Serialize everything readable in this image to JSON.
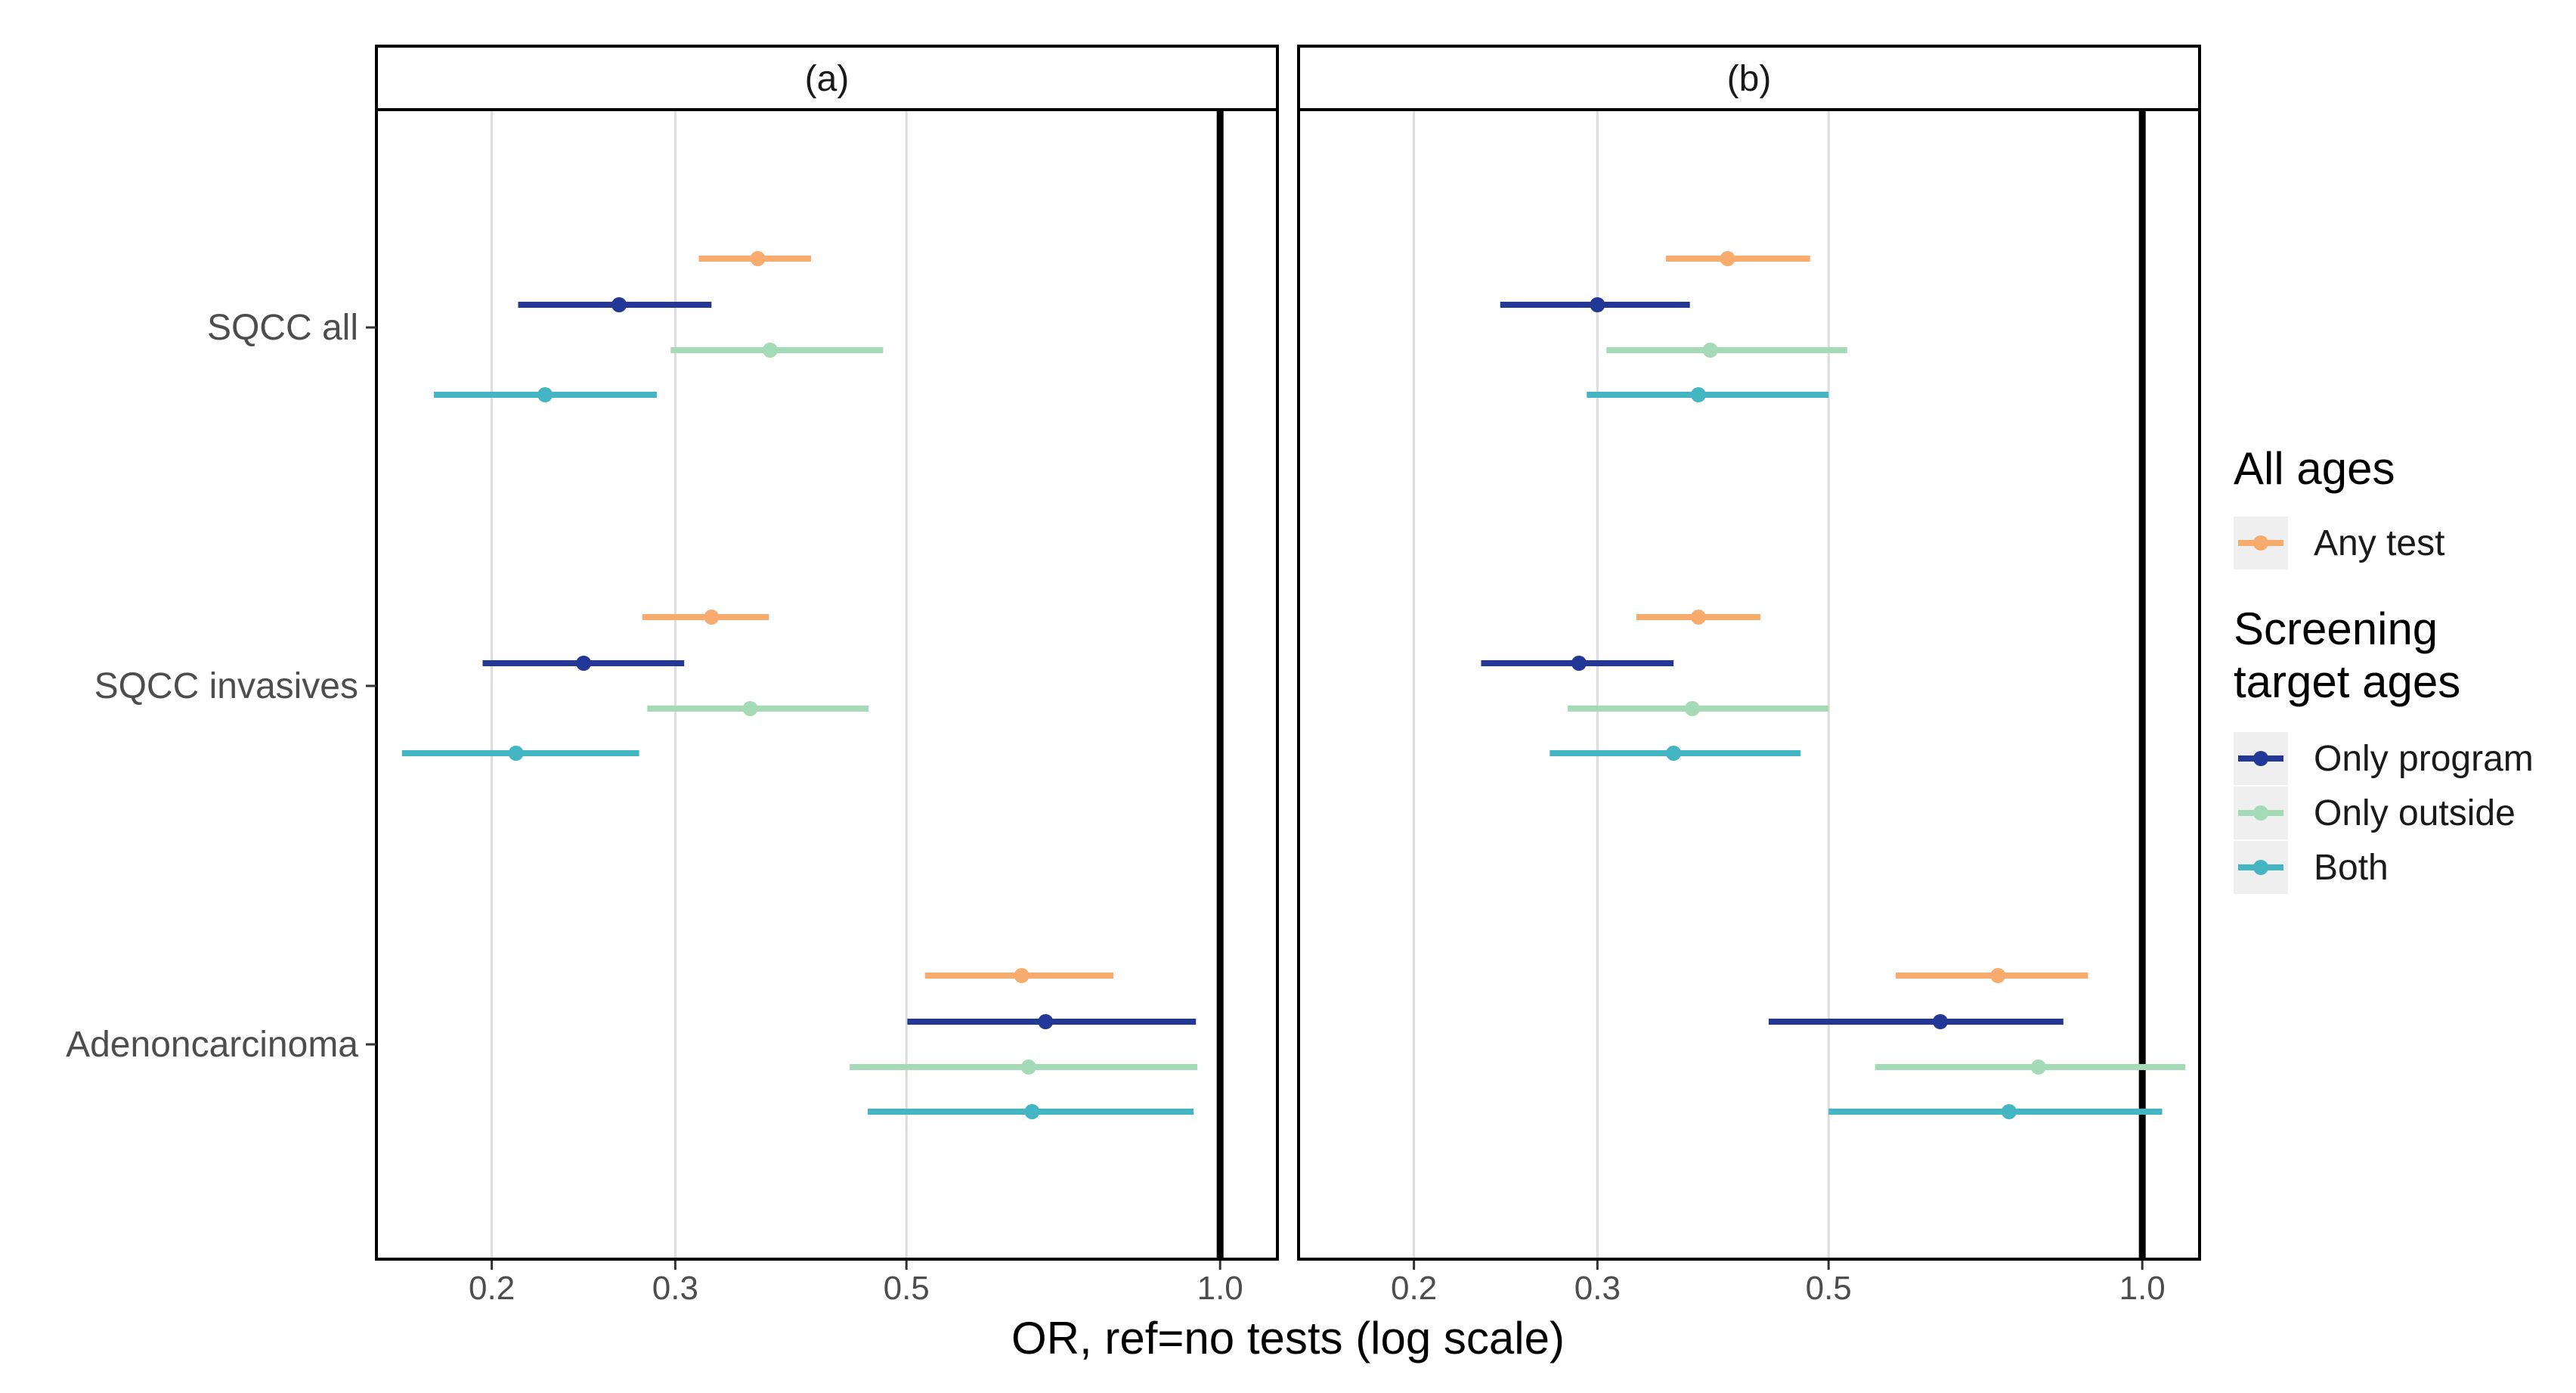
{
  "chart_data": {
    "type": "forest",
    "scale": "log",
    "xlim": [
      0.155,
      1.135
    ],
    "xticks": [
      0.2,
      0.3,
      0.5,
      1.0
    ],
    "xtick_labels": [
      "0.2",
      "0.3",
      "0.5",
      "1.0"
    ],
    "reference_line": 1.0,
    "xlabel": "OR, ref=no tests (log scale)",
    "categories": [
      "SQCC all",
      "SQCC invasives",
      "Adenoncarcinoma"
    ],
    "colors": {
      "any": "#F7AC6E",
      "program": "#233796",
      "outside": "#A4DBB6",
      "both": "#44B5C2"
    },
    "legend": {
      "title1": "All ages",
      "items1": [
        {
          "key": "any",
          "label": "Any test"
        }
      ],
      "title2_line1": "Screening",
      "title2_line2": "target ages",
      "items2": [
        {
          "key": "program",
          "label": "Only program"
        },
        {
          "key": "outside",
          "label": "Only outside"
        },
        {
          "key": "both",
          "label": "Both"
        }
      ]
    },
    "panels": [
      {
        "title": "(a)",
        "groups": [
          {
            "category": "SQCC all",
            "rows": [
              {
                "key": "any",
                "est": 0.36,
                "lo": 0.316,
                "hi": 0.405
              },
              {
                "key": "program",
                "est": 0.265,
                "lo": 0.212,
                "hi": 0.325
              },
              {
                "key": "outside",
                "est": 0.37,
                "lo": 0.297,
                "hi": 0.475
              },
              {
                "key": "both",
                "est": 0.225,
                "lo": 0.176,
                "hi": 0.288
              }
            ]
          },
          {
            "category": "SQCC invasives",
            "rows": [
              {
                "key": "any",
                "est": 0.325,
                "lo": 0.279,
                "hi": 0.369
              },
              {
                "key": "program",
                "est": 0.245,
                "lo": 0.196,
                "hi": 0.306
              },
              {
                "key": "outside",
                "est": 0.354,
                "lo": 0.282,
                "hi": 0.46
              },
              {
                "key": "both",
                "est": 0.211,
                "lo": 0.164,
                "hi": 0.277
              }
            ]
          },
          {
            "category": "Adenoncarcinoma",
            "rows": [
              {
                "key": "any",
                "est": 0.645,
                "lo": 0.521,
                "hi": 0.79
              },
              {
                "key": "program",
                "est": 0.68,
                "lo": 0.501,
                "hi": 0.948
              },
              {
                "key": "outside",
                "est": 0.655,
                "lo": 0.441,
                "hi": 0.951
              },
              {
                "key": "both",
                "est": 0.66,
                "lo": 0.459,
                "hi": 0.943
              }
            ]
          }
        ]
      },
      {
        "title": "(b)",
        "groups": [
          {
            "category": "SQCC all",
            "rows": [
              {
                "key": "any",
                "est": 0.4,
                "lo": 0.349,
                "hi": 0.48
              },
              {
                "key": "program",
                "est": 0.3,
                "lo": 0.242,
                "hi": 0.368
              },
              {
                "key": "outside",
                "est": 0.385,
                "lo": 0.306,
                "hi": 0.521
              },
              {
                "key": "both",
                "est": 0.375,
                "lo": 0.293,
                "hi": 0.5
              }
            ]
          },
          {
            "category": "SQCC invasives",
            "rows": [
              {
                "key": "any",
                "est": 0.375,
                "lo": 0.327,
                "hi": 0.43
              },
              {
                "key": "program",
                "est": 0.288,
                "lo": 0.232,
                "hi": 0.355
              },
              {
                "key": "outside",
                "est": 0.37,
                "lo": 0.281,
                "hi": 0.5
              },
              {
                "key": "both",
                "est": 0.355,
                "lo": 0.27,
                "hi": 0.47
              }
            ]
          },
          {
            "category": "Adenoncarcinoma",
            "rows": [
              {
                "key": "any",
                "est": 0.727,
                "lo": 0.58,
                "hi": 0.887
              },
              {
                "key": "program",
                "est": 0.64,
                "lo": 0.438,
                "hi": 0.84
              },
              {
                "key": "outside",
                "est": 0.795,
                "lo": 0.554,
                "hi": 1.1
              },
              {
                "key": "both",
                "est": 0.745,
                "lo": 0.5,
                "hi": 1.045
              }
            ]
          }
        ]
      }
    ]
  }
}
